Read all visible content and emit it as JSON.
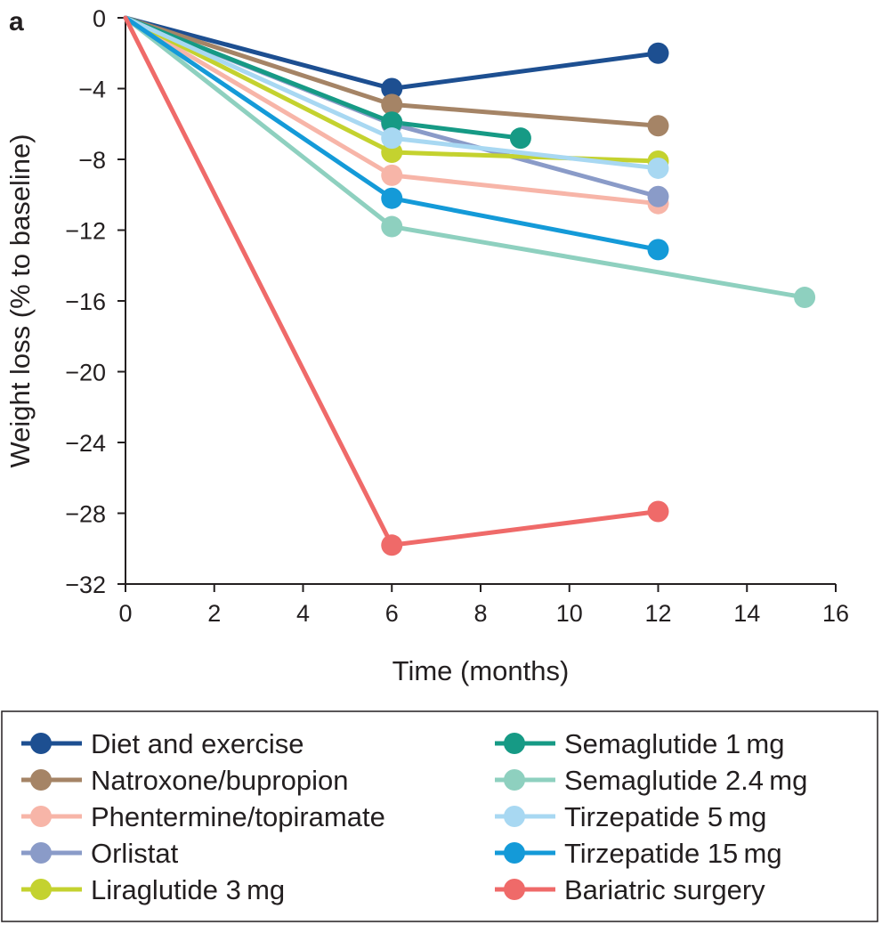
{
  "panel_label": "a",
  "chart_data": {
    "type": "line",
    "xlabel": "Time (months)",
    "ylabel": "Weight loss (% to baseline)",
    "xlim": [
      0,
      16
    ],
    "ylim": [
      -32,
      0
    ],
    "x_ticks": [
      0,
      2,
      4,
      6,
      8,
      10,
      12,
      14,
      16
    ],
    "y_ticks": [
      0,
      -4,
      -8,
      -12,
      -16,
      -20,
      -24,
      -28,
      -32
    ],
    "x_tick_labels": [
      "0",
      "2",
      "4",
      "6",
      "8",
      "10",
      "12",
      "14",
      "16"
    ],
    "y_tick_labels": [
      "0",
      "−4",
      "−8",
      "−12",
      "−16",
      "−20",
      "−24",
      "−28",
      "−32"
    ],
    "grid": false,
    "legend_position": "bottom",
    "series": [
      {
        "name": "Diet and exercise",
        "color": "#1d4f91",
        "points": [
          [
            0,
            0
          ],
          [
            6,
            -4
          ],
          [
            12,
            -2
          ]
        ]
      },
      {
        "name": "Natroxone/bupropion",
        "color": "#a58466",
        "points": [
          [
            0,
            0
          ],
          [
            6,
            -4.9
          ],
          [
            12,
            -6.1
          ]
        ]
      },
      {
        "name": "Phentermine/topiramate",
        "color": "#f7b5a8",
        "points": [
          [
            0,
            0
          ],
          [
            6,
            -8.9
          ],
          [
            12,
            -10.5
          ]
        ]
      },
      {
        "name": "Orlistat",
        "color": "#8a9bc8",
        "points": [
          [
            0,
            0
          ],
          [
            6,
            -6
          ],
          [
            12,
            -10.1
          ]
        ]
      },
      {
        "name": "Liraglutide 3 mg",
        "color": "#c4d22f",
        "points": [
          [
            0,
            0
          ],
          [
            6,
            -7.6
          ],
          [
            12,
            -8.1
          ]
        ]
      },
      {
        "name": "Semaglutide 1 mg",
        "color": "#169a85",
        "points": [
          [
            0,
            0
          ],
          [
            6,
            -5.9
          ],
          [
            8.9,
            -6.8
          ]
        ]
      },
      {
        "name": "Semaglutide 2.4 mg",
        "color": "#8ed0bf",
        "points": [
          [
            0,
            0
          ],
          [
            6,
            -11.8
          ],
          [
            15.3,
            -15.8
          ]
        ]
      },
      {
        "name": "Tirzepatide 5 mg",
        "color": "#a8d8f2",
        "points": [
          [
            0,
            0
          ],
          [
            6,
            -6.8
          ],
          [
            12,
            -8.5
          ]
        ]
      },
      {
        "name": "Tirzepatide 15 mg",
        "color": "#149ad8",
        "points": [
          [
            0,
            0
          ],
          [
            6,
            -10.2
          ],
          [
            12,
            -13.1
          ]
        ]
      },
      {
        "name": "Bariatric surgery",
        "color": "#ef6a69",
        "points": [
          [
            0,
            0
          ],
          [
            6,
            -29.8
          ],
          [
            12,
            -27.9
          ]
        ]
      }
    ]
  }
}
